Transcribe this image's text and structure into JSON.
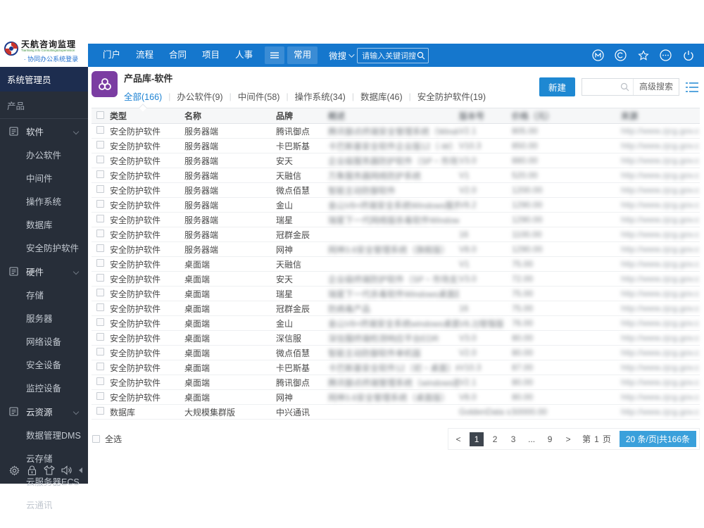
{
  "header": {
    "logo": {
      "title": "天航咨询监理",
      "subtitle": "Tianhang Info Consulting&Supervision",
      "login_link": "· 协同办公系统登录"
    },
    "nav_items": [
      "门户",
      "流程",
      "合同",
      "项目",
      "人事"
    ],
    "more_menu_label": "常用",
    "search_scope": "微搜",
    "search_placeholder": "请输入关键词搜"
  },
  "sidebar": {
    "role": "系统管理员",
    "section": "产品",
    "groups": [
      {
        "label": "软件",
        "items": [
          "办公软件",
          "中间件",
          "操作系统",
          "数据库",
          "安全防护软件"
        ]
      },
      {
        "label": "硬件",
        "items": [
          "存储",
          "服务器",
          "网络设备",
          "安全设备",
          "监控设备"
        ]
      },
      {
        "label": "云资源",
        "items": [
          "数据管理DMS",
          "云存储",
          "云服务器ECS",
          "云通讯"
        ]
      }
    ]
  },
  "main": {
    "title": "产品库-软件",
    "tabs": [
      {
        "label": "全部(166)",
        "active": true
      },
      {
        "label": "办公软件(9)",
        "active": false
      },
      {
        "label": "中间件(58)",
        "active": false
      },
      {
        "label": "操作系统(34)",
        "active": false
      },
      {
        "label": "数据库(46)",
        "active": false
      },
      {
        "label": "安全防护软件(19)",
        "active": false
      }
    ],
    "new_button": "新建",
    "advanced_search": "高级搜索",
    "table": {
      "columns": [
        {
          "label": "类型",
          "blurred": false
        },
        {
          "label": "名称",
          "blurred": false
        },
        {
          "label": "品牌",
          "blurred": false
        },
        {
          "label": "概述",
          "blurred": true
        },
        {
          "label": "版本号",
          "blurred": true
        },
        {
          "label": "价格（元）",
          "blurred": true
        },
        {
          "label": "来源",
          "blurred": true
        }
      ],
      "rows": [
        [
          "安全防护软件",
          "服务器端",
          "腾讯御点",
          "腾讯御点终端安全管理系统（Windows版）",
          "V2.1",
          "805.00",
          "http://www.zjcg.gov.cn/djg/"
        ],
        [
          "安全防护软件",
          "服务器端",
          "卡巴斯基",
          "卡巴斯基安全软件企业版12（-W）亚性...",
          "V10.3",
          "850.00",
          "http://www.zjcg.gov.cn/djg/"
        ],
        [
          "安全防护软件",
          "服务器端",
          "安天",
          "企业级服务器防护软件（SP・市场支持版）",
          "V3.0",
          "880.00",
          "http://www.zjcg.gov.cn/djg/"
        ],
        [
          "安全防护软件",
          "服务器端",
          "天融信",
          "万象服务器网络防护系统",
          "V1",
          "520.00",
          "http://www.zjcg.gov.cn/djg/"
        ],
        [
          "安全防护软件",
          "服务器端",
          "微点佰慧",
          "智能主动防御软件",
          "V2.0",
          "1200.00",
          "http://www.zjcg.gov.cn/djg/"
        ],
        [
          "安全防护软件",
          "服务器端",
          "金山",
          "金山V8+终端安全系统Windows服务器版",
          "V8.2",
          "1290.00",
          "http://www.zjcg.gov.cn/djg/"
        ],
        [
          "安全防护软件",
          "服务器端",
          "瑞星",
          "瑞星下一代网络版杀毒软件Windows版",
          "",
          "1290.00",
          "http://www.zjcg.gov.cn/djg/"
        ],
        [
          "安全防护软件",
          "服务器端",
          "冠群金辰",
          "",
          "16",
          "1100.00",
          "http://www.zjcg.gov.cn/djg/"
        ],
        [
          "安全防护软件",
          "服务器端",
          "网神",
          "网神3.6安全管理系统（旗舰版）",
          "V8.0",
          "1290.00",
          "http://www.zjcg.gov.cn/djg/"
        ],
        [
          "安全防护软件",
          "桌面端",
          "天融信",
          "",
          "V1",
          "75.00",
          "http://www.zjcg.gov.cn/djg/"
        ],
        [
          "安全防护软件",
          "桌面端",
          "安天",
          "企业级终端防护软件（SP・市场支持版）",
          "V3.0",
          "72.00",
          "http://www.zjcg.gov.cn/djg/"
        ],
        [
          "安全防护软件",
          "桌面端",
          "瑞星",
          "瑞星下一代杀毒软件Windows桌面版",
          "",
          "75.00",
          "http://www.zjcg.gov.cn/djg/"
        ],
        [
          "安全防护软件",
          "桌面端",
          "冠群金辰",
          "防病毒产品",
          "16",
          "75.00",
          "http://www.zjcg.gov.cn/djg/"
        ],
        [
          "安全防护软件",
          "桌面端",
          "金山",
          "金山V8+终端安全系统windows桌面版",
          "V8.2|增强版",
          "76.00",
          "http://www.zjcg.gov.cn/djg/"
        ],
        [
          "安全防护软件",
          "桌面端",
          "深信服",
          "深信服终端检测响应平台EDR",
          "V3.0",
          "80.00",
          "http://www.zjcg.gov.cn/djg/"
        ],
        [
          "安全防护软件",
          "桌面端",
          "微点佰慧",
          "智能主动防御软件单机版",
          "V2.0",
          "80.00",
          "http://www.zjcg.gov.cn/djg/"
        ],
        [
          "安全防护软件",
          "桌面端",
          "卡巴斯基",
          "卡巴斯基安全软件12（初・桌面）KSL・",
          "V10.3",
          "87.00",
          "http://www.zjcg.gov.cn/djg/"
        ],
        [
          "安全防护软件",
          "桌面端",
          "腾讯御点",
          "腾讯御点终端管理系统（windows版）V2.1",
          "V2.1",
          "80.00",
          "http://www.zjcg.gov.cn/djg/"
        ],
        [
          "安全防护软件",
          "桌面端",
          "网神",
          "网神3.6安全管理系统（桌面版）",
          "V8.0",
          "80.00",
          "http://www.zjcg.gov.cn/djg/"
        ],
        [
          "数据库",
          "大规模集群版",
          "中兴通讯",
          "",
          "GoldenData s...",
          "50000.00",
          "http://www.zjcg.gov.cn/djg/"
        ]
      ],
      "select_all": "全选"
    },
    "pagination": {
      "prev": "<",
      "pages": [
        "1",
        "2",
        "3",
        "...",
        "9"
      ],
      "active_page": "1",
      "next": ">",
      "jump_prefix": "第",
      "jump_value": "1",
      "jump_suffix": "页",
      "summary": "20 条/页|共166条"
    }
  },
  "colors": {
    "header_blue": "#1577cd",
    "accent_blue": "#1e83d3",
    "sidebar_bg": "#272e39",
    "role_bg": "#1d2d4f",
    "module_icon_purple": "#7b3da2",
    "pager_chip_blue": "#3aa0db",
    "active_page_bg": "#3e454e"
  }
}
